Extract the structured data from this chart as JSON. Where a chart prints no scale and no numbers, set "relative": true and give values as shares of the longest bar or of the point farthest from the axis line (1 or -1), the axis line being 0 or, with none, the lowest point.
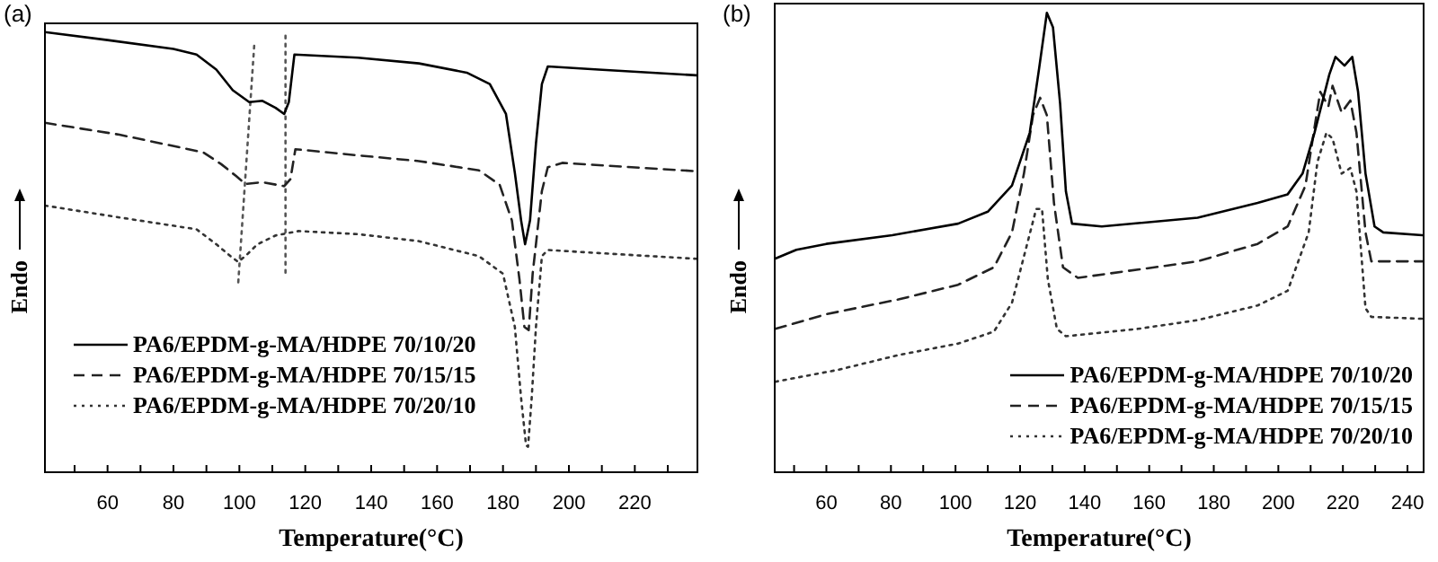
{
  "chart_data": [
    {
      "type": "line",
      "title": "(a)",
      "xlabel": "Temperature(°C)",
      "ylabel": "Endo",
      "relative": true,
      "xlim": [
        41,
        239
      ],
      "xticks": [
        60,
        80,
        100,
        120,
        140,
        160,
        180,
        200,
        220
      ],
      "grid": false,
      "legend": "bottom left",
      "marker": "none",
      "series": [
        {
          "name": "PA6/EPDM-g-MA/HDPE 70/10/20",
          "color": "#000000",
          "line_style": "solid",
          "x": [
            41,
            60,
            80,
            87,
            93,
            98,
            103,
            107,
            111,
            113.6,
            115,
            116.7,
            136,
            154.5,
            169,
            176,
            180.9,
            183.6,
            185.5,
            186.7,
            188.2,
            190,
            191.8,
            193.6,
            209,
            238.7
          ],
          "values": [
            1.0,
            0.982,
            0.962,
            0.949,
            0.915,
            0.868,
            0.841,
            0.844,
            0.828,
            0.814,
            0.841,
            0.949,
            0.942,
            0.929,
            0.908,
            0.882,
            0.814,
            0.68,
            0.572,
            0.518,
            0.572,
            0.747,
            0.882,
            0.922,
            0.915,
            0.902
          ]
        },
        {
          "name": "PA6/EPDM-g-MA/HDPE 70/15/15",
          "color": "#222222",
          "line_style": "dashed",
          "x": [
            41,
            63.6,
            89,
            94.5,
            99,
            101.8,
            107,
            113.6,
            115.5,
            117,
            136,
            154.5,
            172.7,
            179,
            182.7,
            185,
            186.5,
            187.8,
            189,
            191.8,
            193.6,
            198,
            238.7
          ],
          "values": [
            0.794,
            0.767,
            0.727,
            0.7,
            0.673,
            0.655,
            0.659,
            0.65,
            0.666,
            0.734,
            0.72,
            0.707,
            0.686,
            0.653,
            0.572,
            0.438,
            0.33,
            0.323,
            0.451,
            0.639,
            0.693,
            0.703,
            0.684
          ]
        },
        {
          "name": "PA6/EPDM-g-MA/HDPE 70/20/10",
          "color": "#333333",
          "line_style": "dotted",
          "x": [
            41,
            63.6,
            87,
            93,
            97.3,
            99.6,
            101.8,
            105.5,
            111,
            118,
            136,
            154.5,
            172.7,
            180,
            183.6,
            185.5,
            187,
            187.6,
            188.7,
            190,
            191.8,
            193.6,
            209,
            238.7
          ],
          "values": [
            0.606,
            0.579,
            0.552,
            0.518,
            0.491,
            0.478,
            0.491,
            0.518,
            0.538,
            0.548,
            0.541,
            0.525,
            0.491,
            0.451,
            0.33,
            0.168,
            0.061,
            0.058,
            0.168,
            0.33,
            0.491,
            0.505,
            0.498,
            0.485
          ]
        },
        {
          "color": "#555555",
          "line_style": "dotted",
          "x": [
            104.5,
            99.6
          ],
          "values": [
            0.969,
            0.424
          ]
        },
        {
          "color": "#555555",
          "line_style": "dotted",
          "x": [
            114,
            114
          ],
          "values": [
            0.992,
            0.444
          ]
        }
      ]
    },
    {
      "type": "line",
      "title": "(b)",
      "xlabel": "Temperature(°C)",
      "ylabel": "Endo",
      "relative": true,
      "xlim": [
        44,
        245
      ],
      "xticks": [
        60,
        80,
        100,
        120,
        140,
        160,
        180,
        200,
        220,
        240
      ],
      "grid": false,
      "legend": "bottom right",
      "marker": "none",
      "series": [
        {
          "name": "PA6/EPDM-g-MA/HDPE 70/10/20",
          "color": "#000000",
          "line_style": "solid",
          "x": [
            44.2,
            50.7,
            60,
            80.4,
            100.8,
            110,
            117.5,
            123,
            125.9,
            128.3,
            130.2,
            132.4,
            134.2,
            136.1,
            145.3,
            175,
            193.6,
            202.9,
            207.5,
            211.2,
            215.8,
            217.7,
            220.5,
            222.9,
            224.7,
            227,
            229.8,
            232.5,
            244.6
          ],
          "values": [
            0.465,
            0.484,
            0.497,
            0.516,
            0.541,
            0.567,
            0.624,
            0.739,
            0.879,
            1.0,
            0.968,
            0.803,
            0.611,
            0.541,
            0.535,
            0.554,
            0.586,
            0.605,
            0.65,
            0.739,
            0.866,
            0.904,
            0.885,
            0.904,
            0.828,
            0.65,
            0.535,
            0.522,
            0.516
          ]
        },
        {
          "name": "PA6/EPDM-g-MA/HDPE 70/15/15",
          "color": "#222222",
          "line_style": "dashed",
          "x": [
            44.2,
            60,
            82.3,
            100.8,
            111.9,
            117.5,
            121.2,
            124,
            126.2,
            128.3,
            130.5,
            133.3,
            137.9,
            175,
            193.6,
            202.9,
            208.4,
            211.8,
            213,
            215.5,
            216.8,
            219.6,
            222.3,
            224.2,
            227,
            228.8,
            244.6
          ],
          "values": [
            0.312,
            0.344,
            0.376,
            0.408,
            0.446,
            0.522,
            0.65,
            0.777,
            0.815,
            0.777,
            0.586,
            0.446,
            0.423,
            0.459,
            0.497,
            0.535,
            0.624,
            0.777,
            0.828,
            0.796,
            0.841,
            0.783,
            0.809,
            0.739,
            0.522,
            0.459,
            0.459
          ]
        },
        {
          "name": "PA6/EPDM-g-MA/HDPE 70/20/10",
          "color": "#333333",
          "line_style": "dotted",
          "x": [
            44.2,
            63.7,
            82.3,
            100.8,
            111.9,
            117.5,
            122.2,
            125,
            126.8,
            128.6,
            131.4,
            134.2,
            156.5,
            175,
            193.6,
            202.9,
            209.4,
            212.1,
            214.9,
            216.8,
            219.6,
            222.3,
            224.2,
            227,
            228.8,
            244.6
          ],
          "values": [
            0.197,
            0.223,
            0.255,
            0.28,
            0.306,
            0.369,
            0.497,
            0.573,
            0.573,
            0.42,
            0.312,
            0.296,
            0.312,
            0.331,
            0.363,
            0.395,
            0.522,
            0.675,
            0.739,
            0.726,
            0.65,
            0.662,
            0.611,
            0.357,
            0.338,
            0.334
          ]
        }
      ]
    }
  ]
}
